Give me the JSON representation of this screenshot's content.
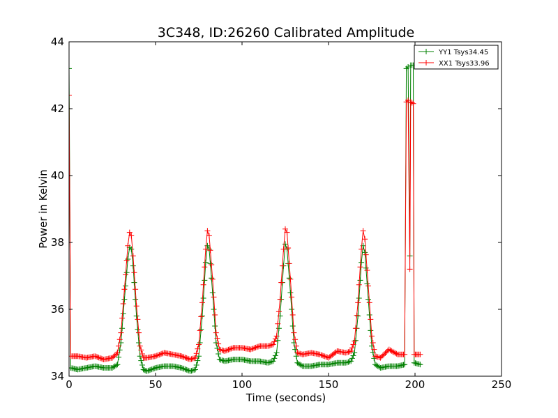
{
  "chart_data": {
    "type": "line",
    "title": "3C348, ID:26260 Calibrated Amplitude",
    "xlabel": "Time (seconds)",
    "ylabel": "Power in Kelvin",
    "xlim": [
      0,
      250
    ],
    "ylim": [
      34,
      44
    ],
    "xticks": [
      "0",
      "50",
      "100",
      "150",
      "200",
      "250"
    ],
    "yticks": [
      "34",
      "36",
      "38",
      "40",
      "42",
      "44"
    ],
    "grid": false,
    "legend": "top-right",
    "series": [
      {
        "name": "YY1 Tsys34.45",
        "color": "#008000",
        "points": [
          [
            0,
            43.2
          ],
          [
            1,
            34.25
          ],
          [
            5,
            34.2
          ],
          [
            10,
            34.25
          ],
          [
            15,
            34.3
          ],
          [
            20,
            34.25
          ],
          [
            25,
            34.25
          ],
          [
            28,
            34.35
          ],
          [
            30,
            35.0
          ],
          [
            32,
            36.3
          ],
          [
            34,
            37.5
          ],
          [
            35,
            37.85
          ],
          [
            36,
            37.8
          ],
          [
            37,
            37.3
          ],
          [
            39,
            35.8
          ],
          [
            41,
            34.6
          ],
          [
            43,
            34.2
          ],
          [
            45,
            34.15
          ],
          [
            50,
            34.25
          ],
          [
            55,
            34.3
          ],
          [
            60,
            34.3
          ],
          [
            65,
            34.25
          ],
          [
            70,
            34.15
          ],
          [
            73,
            34.2
          ],
          [
            75,
            34.6
          ],
          [
            77,
            35.8
          ],
          [
            79,
            37.4
          ],
          [
            80,
            37.9
          ],
          [
            81,
            37.8
          ],
          [
            83,
            36.5
          ],
          [
            85,
            35.0
          ],
          [
            87,
            34.5
          ],
          [
            90,
            34.45
          ],
          [
            95,
            34.5
          ],
          [
            100,
            34.5
          ],
          [
            105,
            34.45
          ],
          [
            110,
            34.45
          ],
          [
            115,
            34.4
          ],
          [
            118,
            34.45
          ],
          [
            120,
            34.7
          ],
          [
            122,
            35.8
          ],
          [
            124,
            37.3
          ],
          [
            125,
            37.95
          ],
          [
            126,
            37.8
          ],
          [
            128,
            36.5
          ],
          [
            130,
            35.0
          ],
          [
            132,
            34.4
          ],
          [
            135,
            34.3
          ],
          [
            140,
            34.3
          ],
          [
            145,
            34.35
          ],
          [
            150,
            34.35
          ],
          [
            155,
            34.4
          ],
          [
            160,
            34.4
          ],
          [
            163,
            34.45
          ],
          [
            165,
            34.7
          ],
          [
            167,
            35.8
          ],
          [
            169,
            37.4
          ],
          [
            170,
            37.9
          ],
          [
            171,
            37.7
          ],
          [
            173,
            36.3
          ],
          [
            175,
            34.9
          ],
          [
            177,
            34.35
          ],
          [
            180,
            34.25
          ],
          [
            185,
            34.3
          ],
          [
            190,
            34.3
          ],
          [
            194,
            34.35
          ],
          [
            195,
            43.2
          ],
          [
            196,
            43.25
          ],
          [
            197,
            37.6
          ],
          [
            197.5,
            43.3
          ],
          [
            199,
            43.3
          ],
          [
            199.5,
            34.4
          ],
          [
            203,
            34.35
          ]
        ]
      },
      {
        "name": "XX1 Tsys33.96",
        "color": "#ff0000",
        "points": [
          [
            0,
            42.4
          ],
          [
            1,
            34.6
          ],
          [
            5,
            34.6
          ],
          [
            10,
            34.55
          ],
          [
            15,
            34.6
          ],
          [
            20,
            34.5
          ],
          [
            25,
            34.55
          ],
          [
            28,
            34.7
          ],
          [
            30,
            35.3
          ],
          [
            32,
            36.6
          ],
          [
            34,
            37.9
          ],
          [
            35,
            38.3
          ],
          [
            36,
            38.2
          ],
          [
            37,
            37.6
          ],
          [
            39,
            36.1
          ],
          [
            41,
            34.9
          ],
          [
            43,
            34.55
          ],
          [
            45,
            34.55
          ],
          [
            50,
            34.6
          ],
          [
            55,
            34.7
          ],
          [
            60,
            34.65
          ],
          [
            65,
            34.6
          ],
          [
            70,
            34.5
          ],
          [
            73,
            34.55
          ],
          [
            75,
            34.95
          ],
          [
            77,
            36.2
          ],
          [
            79,
            37.8
          ],
          [
            80,
            38.35
          ],
          [
            81,
            38.2
          ],
          [
            83,
            36.9
          ],
          [
            85,
            35.3
          ],
          [
            87,
            34.8
          ],
          [
            90,
            34.75
          ],
          [
            95,
            34.85
          ],
          [
            100,
            34.85
          ],
          [
            105,
            34.8
          ],
          [
            110,
            34.9
          ],
          [
            115,
            34.9
          ],
          [
            118,
            34.95
          ],
          [
            120,
            35.2
          ],
          [
            122,
            36.3
          ],
          [
            124,
            37.8
          ],
          [
            125,
            38.4
          ],
          [
            126,
            38.3
          ],
          [
            128,
            36.9
          ],
          [
            130,
            35.3
          ],
          [
            132,
            34.7
          ],
          [
            135,
            34.65
          ],
          [
            140,
            34.7
          ],
          [
            145,
            34.65
          ],
          [
            150,
            34.55
          ],
          [
            155,
            34.75
          ],
          [
            160,
            34.7
          ],
          [
            163,
            34.75
          ],
          [
            165,
            35.05
          ],
          [
            167,
            36.2
          ],
          [
            169,
            37.8
          ],
          [
            170,
            38.35
          ],
          [
            171,
            38.1
          ],
          [
            173,
            36.7
          ],
          [
            175,
            35.2
          ],
          [
            177,
            34.6
          ],
          [
            180,
            34.55
          ],
          [
            185,
            34.8
          ],
          [
            190,
            34.65
          ],
          [
            194,
            34.65
          ],
          [
            195,
            42.2
          ],
          [
            196,
            42.25
          ],
          [
            197,
            37.2
          ],
          [
            197.5,
            42.2
          ],
          [
            199,
            42.15
          ],
          [
            199.5,
            34.65
          ],
          [
            203,
            34.65
          ]
        ]
      }
    ]
  }
}
